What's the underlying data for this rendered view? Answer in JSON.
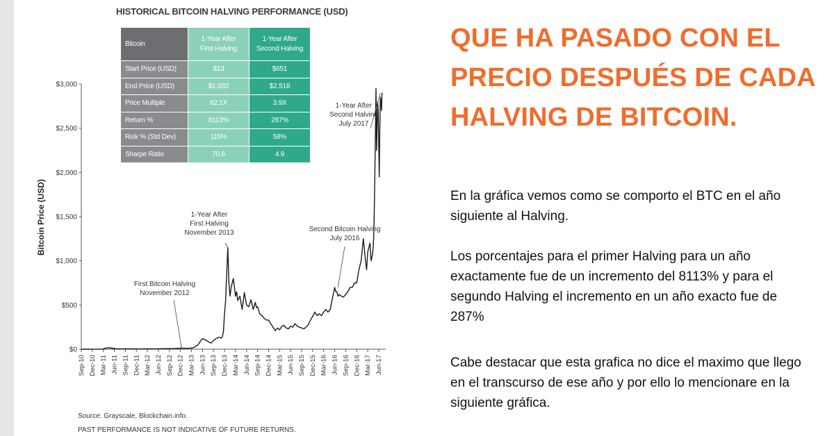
{
  "chart_data": {
    "type": "line",
    "title": "HISTORICAL BITCOIN HALVING PERFORMANCE (USD)",
    "ylabel": "Bitcoin Price (USD)",
    "xlabel": "",
    "ylim": [
      0,
      3000
    ],
    "grid": false,
    "yticks": [
      {
        "value": 0,
        "label": "$0"
      },
      {
        "value": 500,
        "label": "$500"
      },
      {
        "value": 1000,
        "label": "$1,000"
      },
      {
        "value": 1500,
        "label": "$1,500"
      },
      {
        "value": 2000,
        "label": "$2,000"
      },
      {
        "value": 2500,
        "label": "$2,500"
      },
      {
        "value": 3000,
        "label": "$3,000"
      }
    ],
    "x_categories": [
      "Sep-10",
      "Dec-10",
      "Mar-11",
      "Jun-11",
      "Sep-11",
      "Dec-11",
      "Mar-12",
      "Jun-12",
      "Sep-12",
      "Dec-12",
      "Mar-13",
      "Jun-13",
      "Sep-13",
      "Dec-13",
      "Mar-14",
      "Jun-14",
      "Sep-14",
      "Dec-14",
      "Mar-15",
      "Jun-15",
      "Sep-15",
      "Dec-15",
      "Mar-16",
      "Jun-16",
      "Sep-16",
      "Dec-16",
      "Mar-17",
      "Jun-17"
    ],
    "series": [
      {
        "color": "#1a1a1a",
        "x": [
          0,
          0.3,
          0.7,
          1,
          1.4,
          1.7,
          2,
          2.3,
          2.6,
          2.8,
          3,
          3.2,
          3.5,
          4,
          4.5,
          5,
          5.5,
          6,
          6.5,
          7,
          7.5,
          8,
          8.5,
          9,
          9.3,
          9.6,
          9.8,
          10,
          10.1,
          10.2,
          10.4,
          10.6,
          10.8,
          11,
          11.2,
          11.4,
          11.6,
          11.8,
          12,
          12.2,
          12.4,
          12.55,
          12.7,
          12.8,
          12.9,
          13,
          13.1,
          13.2,
          13.3,
          13.4,
          13.5,
          13.6,
          13.8,
          14,
          14.1,
          14.2,
          14.4,
          14.6,
          14.8,
          15,
          15.2,
          15.4,
          15.6,
          15.8,
          15.9,
          16,
          16.2,
          16.4,
          16.6,
          16.8,
          17,
          17.2,
          17.4,
          17.6,
          17.8,
          18,
          18.2,
          18.4,
          18.6,
          18.8,
          19,
          19.2,
          19.4,
          19.6,
          19.8,
          20,
          20.2,
          20.4,
          20.6,
          20.8,
          21,
          21.2,
          21.4,
          21.6,
          21.8,
          22,
          22.2,
          22.4,
          22.6,
          22.8,
          23,
          23.1,
          23.2,
          23.3,
          23.4,
          23.6,
          23.8,
          24,
          24.2,
          24.4,
          24.6,
          24.8,
          25,
          25.2,
          25.4,
          25.6,
          25.8,
          25.9,
          26,
          26.1,
          26.2,
          26.3,
          26.4,
          26.5,
          26.55,
          26.6,
          26.65,
          26.7,
          26.75,
          26.8,
          26.85,
          26.9,
          26.95,
          27,
          27.05,
          27.1,
          27.15,
          27.2,
          27.25,
          27.3
        ],
        "y": [
          0.06,
          0.2,
          0.3,
          0.5,
          0.9,
          1,
          3,
          15,
          16,
          12,
          8,
          5,
          5,
          5,
          4,
          3,
          3,
          4,
          5,
          5,
          6,
          7,
          9,
          12,
          11,
          10,
          11,
          13,
          14,
          20,
          33,
          50,
          90,
          120,
          110,
          95,
          80,
          70,
          100,
          118,
          130,
          135,
          125,
          140,
          200,
          400,
          550,
          850,
          1150,
          750,
          600,
          700,
          800,
          600,
          650,
          550,
          600,
          450,
          640,
          500,
          480,
          560,
          450,
          530,
          470,
          480,
          400,
          380,
          350,
          330,
          330,
          290,
          250,
          210,
          240,
          220,
          260,
          270,
          240,
          230,
          260,
          250,
          290,
          260,
          250,
          240,
          230,
          250,
          275,
          330,
          370,
          420,
          380,
          400,
          380,
          420,
          450,
          420,
          450,
          580,
          700,
          650,
          650,
          600,
          620,
          600,
          590,
          620,
          650,
          700,
          700,
          750,
          750,
          900,
          1000,
          1250,
          1000,
          900,
          1100,
          1150,
          1200,
          1000,
          1050,
          1150,
          1300,
          1600,
          2000,
          2450,
          2950,
          2250,
          2500,
          2800,
          2700,
          2300,
          1950,
          2500,
          2850,
          2800,
          2700,
          2900
        ],
        "values_note": ""
      }
    ],
    "annotations": [
      {
        "lines": [
          "First Bitcoin Halving",
          "November 2012"
        ],
        "x": 9.1,
        "y": 12
      },
      {
        "lines": [
          "1-Year After",
          "First Halving",
          "November 2013"
        ],
        "x": 13.3,
        "y": 1150
      },
      {
        "lines": [
          "Second Bitcoin Halving",
          "July 2016"
        ],
        "x": 23.3,
        "y": 700
      },
      {
        "lines": [
          "1-Year After",
          "Second Halving",
          "July 2017"
        ],
        "x": 27.15,
        "y": 2900
      }
    ]
  },
  "table": {
    "headers": [
      [
        "Bitcoin"
      ],
      [
        "1-Year After",
        "First Halving"
      ],
      [
        "1-Year After",
        "Second Halving"
      ]
    ],
    "rows": [
      [
        "Start Price (USD)",
        "$13",
        "$651"
      ],
      [
        "End Price (USD)",
        "$1,032",
        "$2,518"
      ],
      [
        "Price Multiple",
        "82.1X",
        "3.9X"
      ],
      [
        "Return %",
        "8113%",
        "287%"
      ],
      [
        "Risk % (Std Dev)",
        "115%",
        "58%"
      ],
      [
        "Sharpe Ratio",
        "70.6",
        "4.9"
      ]
    ]
  },
  "footer": {
    "source": "Source: Grayscale, Blockchain.info.",
    "disclaimer": "PAST PERFORMANCE IS NOT INDICATIVE OF FUTURE RETURNS."
  },
  "article": {
    "heading": "QUE HA PASADO CON EL PRECIO DESPUÉS DE CADA HALVING DE BITCOIN.",
    "paragraphs": [
      "En la gráfica vemos como se comporto el BTC en el año siguiente al Halving.",
      "Los porcentajes para el primer Halving para un año exactamente fue de un incremento del 8113% y para el segundo Halving el incremento en un año exacto fue de 287%",
      "Cabe destacar que esta grafica no dice el maximo que llego en el transcurso de ese año y por ello lo mencionare en la siguiente gráfica."
    ],
    "heading_color": "#ef6d2d"
  }
}
